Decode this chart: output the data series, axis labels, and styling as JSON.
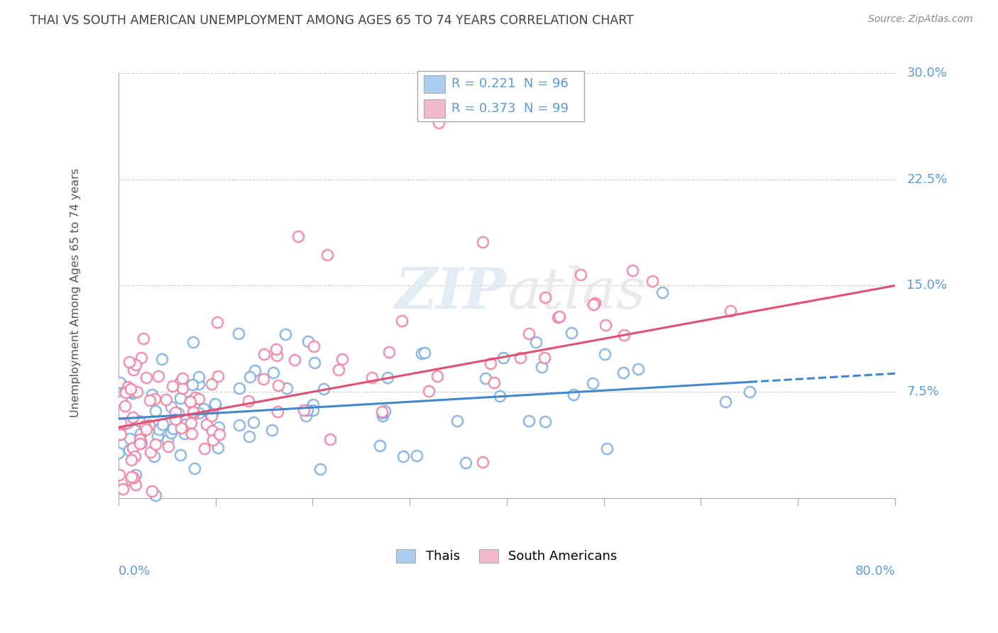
{
  "title": "THAI VS SOUTH AMERICAN UNEMPLOYMENT AMONG AGES 65 TO 74 YEARS CORRELATION CHART",
  "source": "Source: ZipAtlas.com",
  "ylabel": "Unemployment Among Ages 65 to 74 years",
  "legend_label1": "Thais",
  "legend_label2": "South Americans",
  "thai_color": "#aaccee",
  "sa_color": "#f4b8cc",
  "thai_edge_color": "#7aade0",
  "sa_edge_color": "#f080a0",
  "thai_line_color": "#4488cc",
  "sa_line_color": "#e05070",
  "legend_text_color": "#5b9bd5",
  "R_color": "#5b9bd5",
  "N_color": "#5b9bd5",
  "thai_R": 0.221,
  "thai_N": 96,
  "sa_R": 0.373,
  "sa_N": 99,
  "xmin": 0.0,
  "xmax": 0.8,
  "ymin": -0.025,
  "ymax": 0.315,
  "yticks": [
    0.075,
    0.15,
    0.225,
    0.3
  ],
  "ytick_labels": [
    "7.5%",
    "15.0%",
    "22.5%",
    "30.0%"
  ],
  "watermark_text": "ZIPatlas",
  "background_color": "#ffffff",
  "grid_color": "#cccccc",
  "title_color": "#404040",
  "tick_color": "#5b9bd5",
  "thai_line_y0": 0.056,
  "thai_line_y1": 0.088,
  "sa_line_y0": 0.05,
  "sa_line_y1": 0.15
}
